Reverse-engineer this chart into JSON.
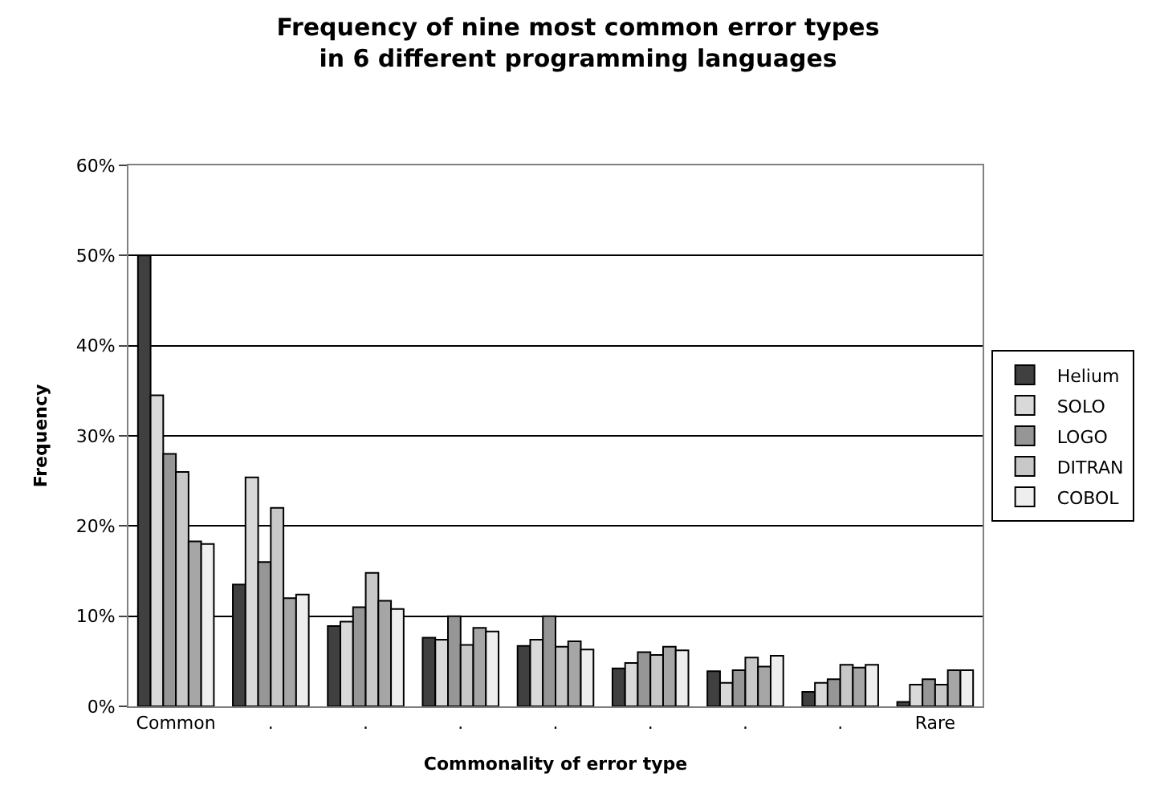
{
  "chart_data": {
    "type": "bar",
    "title": "Frequency of nine most common error types\nin 6 different programming languages",
    "xlabel": "Commonality of error type",
    "ylabel": "Frequency",
    "categories": [
      "Common",
      ".",
      ".",
      ".",
      ".",
      ".",
      ".",
      ".",
      "Rare"
    ],
    "series": [
      {
        "name": "Helium",
        "color": "#404040",
        "values": [
          50,
          13.5,
          8.9,
          7.6,
          6.7,
          4.2,
          3.9,
          1.6,
          0.5
        ]
      },
      {
        "name": "SOLO",
        "color": "#d9d9d9",
        "values": [
          34.5,
          25.4,
          9.4,
          7.4,
          7.4,
          4.8,
          2.6,
          2.6,
          2.4
        ]
      },
      {
        "name": "LOGO",
        "color": "#969696",
        "values": [
          28,
          16,
          11,
          10,
          10,
          6,
          4,
          3,
          3
        ]
      },
      {
        "name": "DITRAN",
        "color": "#c8c8c8",
        "values": [
          26,
          22,
          14.8,
          6.8,
          6.6,
          5.7,
          5.4,
          4.6,
          2.4
        ]
      },
      {
        "color": "#a6a6a6",
        "values": [
          18.3,
          12,
          11.7,
          8.7,
          7.2,
          6.6,
          4.4,
          4.3,
          4
        ]
      },
      {
        "name": "COBOL",
        "color": "#eeeeee",
        "values": [
          18,
          12.4,
          10.8,
          8.3,
          6.3,
          6.2,
          5.6,
          4.6,
          4
        ]
      }
    ],
    "ylim": [
      0,
      60
    ],
    "yticks": [
      {
        "value": 0,
        "label": "0%"
      },
      {
        "value": 10,
        "label": "10%"
      },
      {
        "value": 20,
        "label": "20%"
      },
      {
        "value": 30,
        "label": "30%"
      },
      {
        "value": 40,
        "label": "40%"
      },
      {
        "value": 50,
        "label": "50%"
      },
      {
        "value": 60,
        "label": "60%"
      }
    ],
    "grid": "y",
    "legend": "right"
  }
}
